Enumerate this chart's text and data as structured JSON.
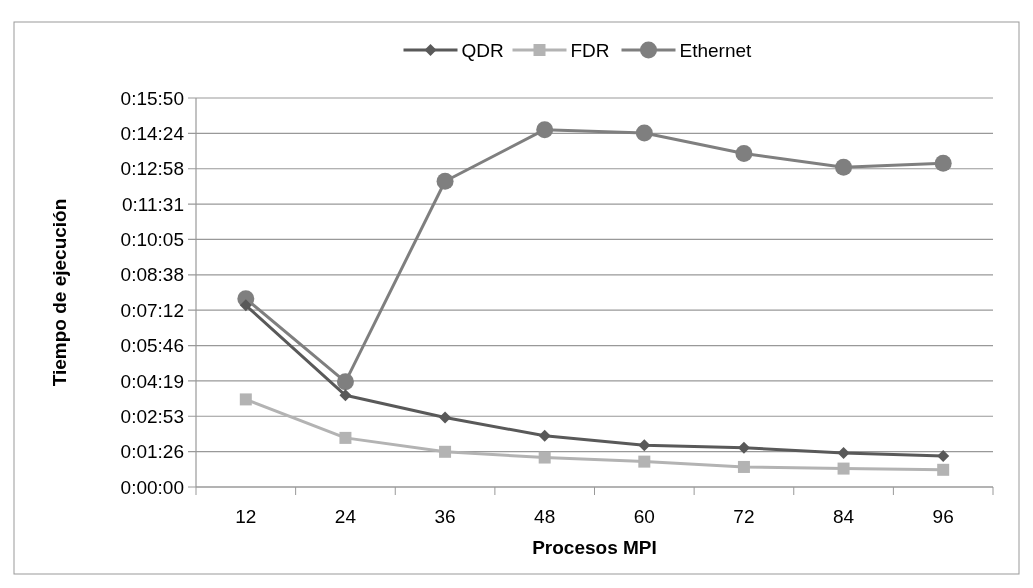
{
  "chart_data": {
    "type": "line",
    "xlabel": "Procesos MPI",
    "ylabel": "Tiempo de ejecución",
    "categories": [
      "12",
      "24",
      "36",
      "48",
      "60",
      "72",
      "84",
      "96"
    ],
    "series": [
      {
        "name": "QDR",
        "color": "#595959",
        "marker": "diamond",
        "values": [
          444,
          224,
          170,
          125,
          102,
          96,
          83,
          76
        ]
      },
      {
        "name": "FDR",
        "color": "#b3b3b3",
        "marker": "square",
        "values": [
          214,
          120,
          86,
          72,
          62,
          49,
          45,
          42
        ]
      },
      {
        "name": "Ethernet",
        "color": "#7f7f7f",
        "marker": "circle",
        "values": [
          460,
          257,
          747,
          873,
          865,
          815,
          781,
          791
        ]
      }
    ],
    "ylim": [
      0,
      950.4
    ],
    "yticks": [
      {
        "value": 0,
        "label": "0:00:00"
      },
      {
        "value": 86.4,
        "label": "0:01:26"
      },
      {
        "value": 172.8,
        "label": "0:02:53"
      },
      {
        "value": 259.2,
        "label": "0:04:19"
      },
      {
        "value": 345.6,
        "label": "0:05:46"
      },
      {
        "value": 432,
        "label": "0:07:12"
      },
      {
        "value": 518.4,
        "label": "0:08:38"
      },
      {
        "value": 604.8,
        "label": "0:10:05"
      },
      {
        "value": 691.2,
        "label": "0:11:31"
      },
      {
        "value": 777.6,
        "label": "0:12:58"
      },
      {
        "value": 864,
        "label": "0:14:24"
      },
      {
        "value": 950.4,
        "label": "0:15:50"
      }
    ],
    "grid": "y",
    "legend": "top"
  }
}
